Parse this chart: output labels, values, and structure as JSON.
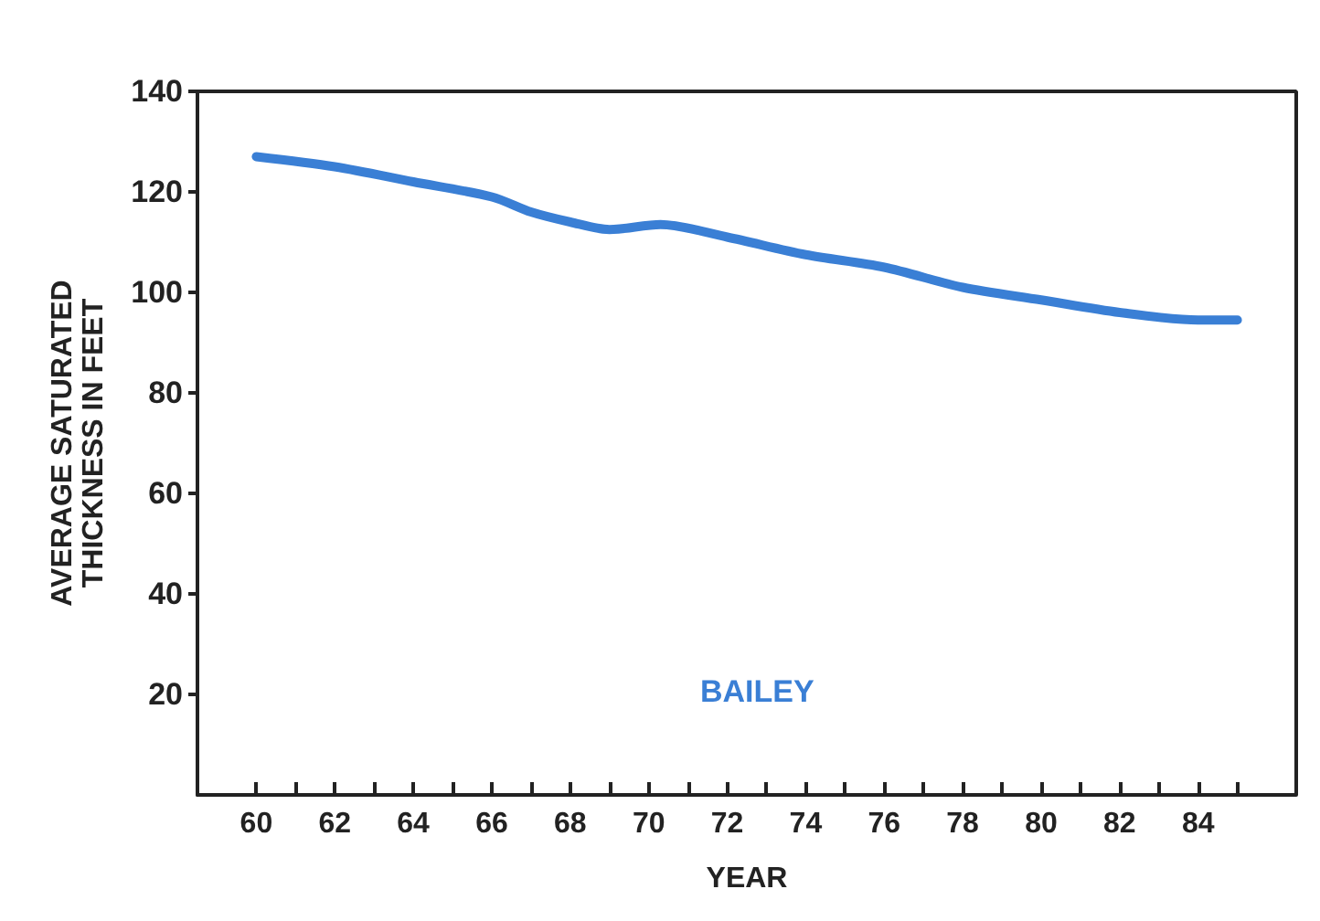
{
  "chart_data": {
    "type": "line",
    "xlabel": "YEAR",
    "ylabel": "AVERAGE SATURATED\nTHICKNESS IN FEET",
    "x": [
      60,
      62,
      64,
      66,
      67,
      68,
      69,
      70.3,
      72,
      74,
      76,
      78,
      80,
      82,
      84,
      85
    ],
    "series": [
      {
        "name": "BAILEY",
        "color": "#3a7fd5",
        "values": [
          127,
          125,
          122,
          119,
          116,
          114,
          112.5,
          113.5,
          111,
          107.5,
          105,
          101,
          98.5,
          96,
          94.5,
          94.5
        ]
      }
    ],
    "xlim": [
      58.5,
      86.5
    ],
    "xticks": [
      60,
      {
        "value": 61,
        "label": null
      },
      62,
      {
        "value": 63,
        "label": null
      },
      64,
      {
        "value": 65,
        "label": null
      },
      66,
      {
        "value": 67,
        "label": null
      },
      68,
      {
        "value": 69,
        "label": null
      },
      70,
      {
        "value": 71,
        "label": null
      },
      72,
      {
        "value": 73,
        "label": null
      },
      74,
      {
        "value": 75,
        "label": null
      },
      76,
      {
        "value": 77,
        "label": null
      },
      78,
      {
        "value": 79,
        "label": null
      },
      80,
      {
        "value": 81,
        "label": null
      },
      82,
      {
        "value": 83,
        "label": null
      },
      84,
      {
        "value": 85,
        "label": null
      }
    ],
    "ylim": [
      0,
      140
    ],
    "yticks": [
      20,
      40,
      60,
      80,
      100,
      120,
      140
    ],
    "grid": false,
    "legend": false,
    "marker": "none",
    "line_style": "solid"
  }
}
